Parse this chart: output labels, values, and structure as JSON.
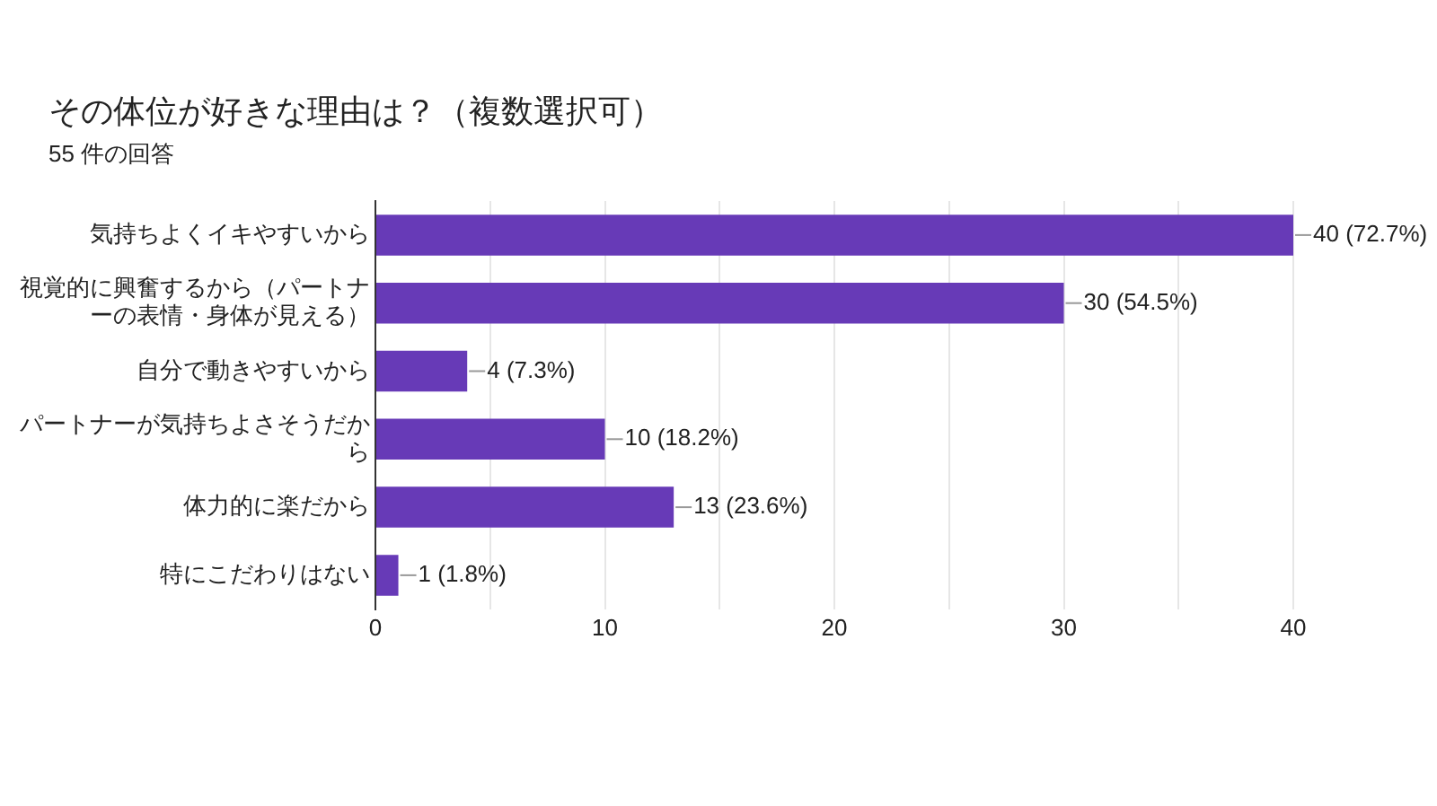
{
  "chart_data": {
    "type": "bar",
    "orientation": "horizontal",
    "title": "その体位が好きな理由は？（複数選択可）",
    "subtitle": "55 件の回答",
    "categories": [
      "気持ちよくイキやすいから",
      "視覚的に興奮するから（パートナーの表情・身体が見える）",
      "自分で動きやすいから",
      "パートナーが気持ちよさそうだから",
      "体力的に楽だから",
      "特にこだわりはない"
    ],
    "values": [
      40,
      30,
      4,
      10,
      13,
      1
    ],
    "value_labels": [
      "40 (72.7%)",
      "30 (54.5%)",
      "4 (7.3%)",
      "10 (18.2%)",
      "13 (23.6%)",
      "1 (1.8%)"
    ],
    "color": "#673ab7",
    "xlim": [
      0,
      40
    ],
    "xticks": [
      0,
      {
        "value": 5,
        "label": null
      },
      10,
      {
        "value": 15,
        "label": null
      },
      20,
      {
        "value": 25,
        "label": null
      },
      30,
      {
        "value": 35,
        "label": null
      },
      40
    ],
    "grid": "x"
  }
}
